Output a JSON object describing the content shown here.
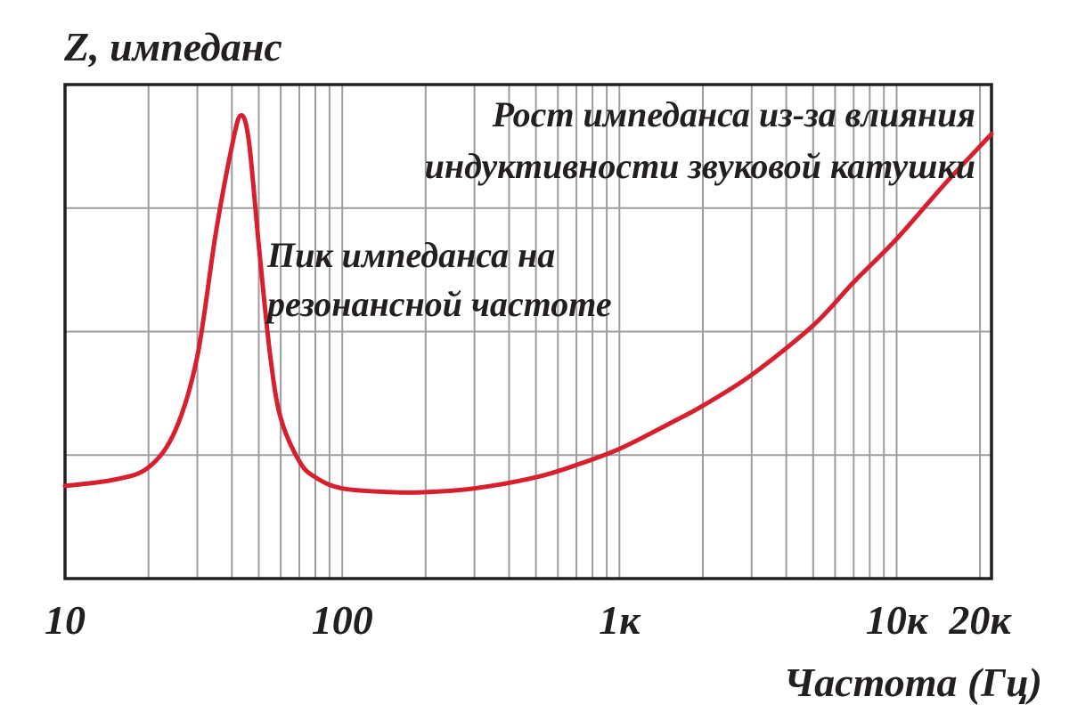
{
  "chart_data": {
    "type": "line",
    "ylabel": "Z, импеданс",
    "xlabel": "Частота (Гц)",
    "x_scale": "log",
    "xlim": [
      10,
      22000
    ],
    "ylim": [
      0,
      4
    ],
    "grid": true,
    "x_ticks": [
      {
        "value": 10,
        "label": "10"
      },
      {
        "value": 100,
        "label": "100"
      },
      {
        "value": 1000,
        "label": "1к"
      },
      {
        "value": 10000,
        "label": "10к"
      },
      {
        "value": 20000,
        "label": "20к"
      }
    ],
    "series": [
      {
        "color": "#d7202e",
        "points": [
          [
            10,
            0.75
          ],
          [
            15,
            0.8
          ],
          [
            20,
            0.9
          ],
          [
            25,
            1.2
          ],
          [
            30,
            1.8
          ],
          [
            35,
            2.8
          ],
          [
            40,
            3.5
          ],
          [
            43,
            3.75
          ],
          [
            46,
            3.55
          ],
          [
            50,
            2.7
          ],
          [
            55,
            1.8
          ],
          [
            60,
            1.3
          ],
          [
            70,
            0.95
          ],
          [
            80,
            0.82
          ],
          [
            100,
            0.73
          ],
          [
            150,
            0.7
          ],
          [
            200,
            0.7
          ],
          [
            300,
            0.73
          ],
          [
            500,
            0.82
          ],
          [
            700,
            0.92
          ],
          [
            1000,
            1.05
          ],
          [
            1500,
            1.25
          ],
          [
            2000,
            1.4
          ],
          [
            3000,
            1.65
          ],
          [
            5000,
            2.05
          ],
          [
            7000,
            2.4
          ],
          [
            10000,
            2.75
          ],
          [
            15000,
            3.2
          ],
          [
            22000,
            3.6
          ]
        ]
      }
    ],
    "annotations": [
      {
        "lines": [
          "Рост импеданса из-за влияния",
          "индуктивности звуковой катушки"
        ],
        "position": "top-right"
      },
      {
        "lines": [
          "Пик импеданса на",
          "резонансной частоте"
        ],
        "position": "next-to-peak"
      }
    ]
  }
}
